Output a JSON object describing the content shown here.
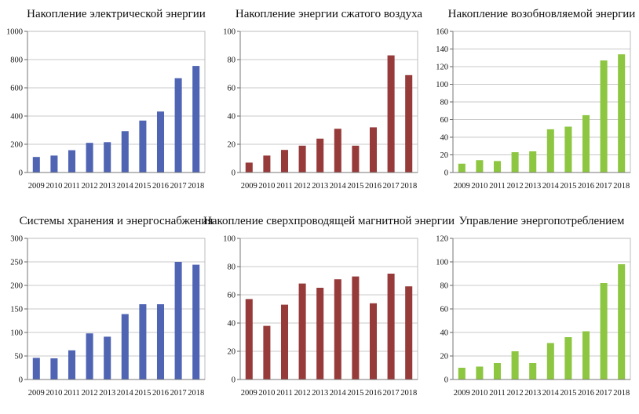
{
  "chart_data": [
    {
      "type": "bar",
      "title": "Накопление электрической энергии",
      "categories": [
        "2009",
        "2010",
        "2011",
        "2012",
        "2013",
        "2014",
        "2015",
        "2016",
        "2017",
        "2018"
      ],
      "values": [
        110,
        120,
        158,
        210,
        215,
        293,
        368,
        432,
        668,
        755
      ],
      "ylim": [
        0,
        1000
      ],
      "yticks": [
        0,
        200,
        400,
        600,
        800,
        1000
      ],
      "color": "#4f64b3",
      "grid": true
    },
    {
      "type": "bar",
      "title": "Накопление энергии сжатого воздуха",
      "categories": [
        "2009",
        "2010",
        "2011",
        "2012",
        "2013",
        "2014",
        "2015",
        "2016",
        "2017",
        "2018"
      ],
      "values": [
        7,
        12,
        16,
        19,
        24,
        31,
        19,
        32,
        83,
        69
      ],
      "ylim": [
        0,
        100
      ],
      "yticks": [
        0,
        20,
        40,
        60,
        80,
        100
      ],
      "color": "#973a3a",
      "grid": true
    },
    {
      "type": "bar",
      "title": "Накопление возобновляемой энергии",
      "categories": [
        "2009",
        "2010",
        "2011",
        "2012",
        "2013",
        "2014",
        "2015",
        "2016",
        "2017",
        "2018"
      ],
      "values": [
        10,
        14,
        13,
        23,
        24,
        49,
        52,
        65,
        127,
        134
      ],
      "ylim": [
        0,
        160
      ],
      "yticks": [
        0,
        20,
        40,
        60,
        80,
        100,
        120,
        140,
        160
      ],
      "color": "#8dc641",
      "grid": true
    },
    {
      "type": "bar",
      "title": "Системы хранения и энергоснабжения",
      "categories": [
        "2009",
        "2010",
        "2011",
        "2012",
        "2013",
        "2014",
        "2015",
        "2016",
        "2017",
        "2018"
      ],
      "values": [
        46,
        45,
        62,
        98,
        91,
        139,
        160,
        160,
        250,
        244
      ],
      "ylim": [
        0,
        300
      ],
      "yticks": [
        0,
        50,
        100,
        150,
        200,
        250,
        300
      ],
      "color": "#4f64b3",
      "grid": true
    },
    {
      "type": "bar",
      "title": "Накопление сверхпроводящей магнитной энергии",
      "categories": [
        "2009",
        "2010",
        "2011",
        "2012",
        "2013",
        "2014",
        "2015",
        "2016",
        "2017",
        "2018"
      ],
      "values": [
        57,
        38,
        53,
        68,
        65,
        71,
        73,
        54,
        75,
        66
      ],
      "ylim": [
        0,
        100
      ],
      "yticks": [
        0,
        20,
        40,
        60,
        80,
        100
      ],
      "color": "#973a3a",
      "grid": true
    },
    {
      "type": "bar",
      "title": "Управление энергопотреблением",
      "categories": [
        "2009",
        "2010",
        "2011",
        "2012",
        "2013",
        "2014",
        "2015",
        "2016",
        "2017",
        "2018"
      ],
      "values": [
        10,
        11,
        14,
        24,
        14,
        31,
        36,
        41,
        82,
        98
      ],
      "ylim": [
        0,
        120
      ],
      "yticks": [
        0,
        20,
        40,
        60,
        80,
        100,
        120
      ],
      "color": "#8dc641",
      "grid": true
    }
  ]
}
